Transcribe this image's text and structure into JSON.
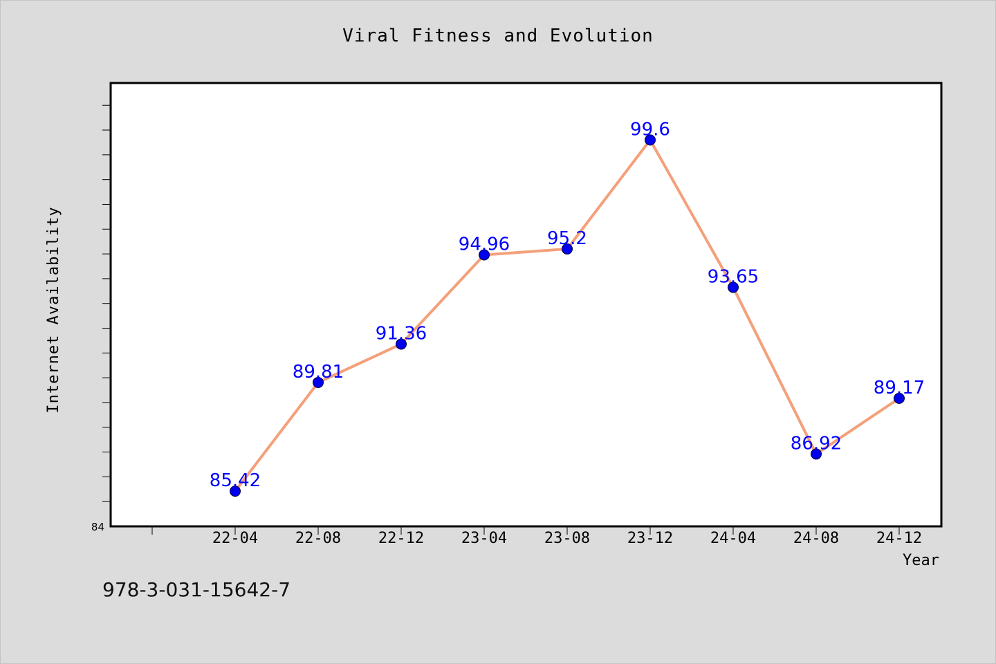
{
  "chart_data": {
    "type": "line",
    "title": "Viral Fitness and Evolution",
    "xlabel": "Year",
    "ylabel": "Internet Availability",
    "categories": [
      "22-04",
      "22-08",
      "22-12",
      "23-04",
      "23-08",
      "23-12",
      "24-04",
      "24-08",
      "24-12"
    ],
    "series": [
      {
        "values": [
          85.42,
          89.81,
          91.36,
          94.96,
          95.2,
          99.6,
          93.65,
          86.92,
          89.17
        ],
        "labels": [
          "85.42",
          "89.81",
          "91.36",
          "94.96",
          "95.2",
          "99.6",
          "93.65",
          "86.92",
          "89.17"
        ]
      }
    ],
    "ylim": [
      84,
      101.9
    ],
    "y_tick_labels": [
      "84"
    ],
    "grid": false,
    "legend": "none",
    "line_color": "#f4a07a",
    "marker_color": "#0000ee",
    "label_color": "#0000ff"
  },
  "footer_text": "978-3-031-15642-7"
}
